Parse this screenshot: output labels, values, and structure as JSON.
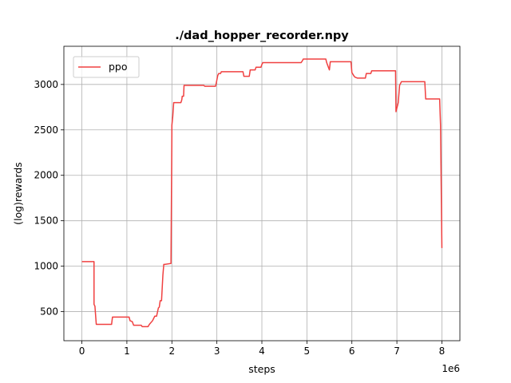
{
  "chart_data": {
    "type": "line",
    "title": "./dad_hopper_recorder.npy",
    "xlabel": "steps",
    "ylabel": "(log)rewards",
    "x_offset_label": "1e6",
    "xlim": [
      -0.4,
      8.4
    ],
    "ylim": [
      180,
      3420
    ],
    "xticks": [
      0,
      1,
      2,
      3,
      4,
      5,
      6,
      7,
      8
    ],
    "yticks": [
      500,
      1000,
      1500,
      2000,
      2500,
      3000
    ],
    "grid": true,
    "legend_position": "upper-left",
    "series": [
      {
        "name": "ppo",
        "color": "#f04040",
        "x": [
          0.0,
          0.27,
          0.27,
          0.29,
          0.32,
          0.33,
          0.66,
          0.68,
          1.05,
          1.07,
          1.12,
          1.15,
          1.32,
          1.34,
          1.47,
          1.5,
          1.57,
          1.62,
          1.66,
          1.7,
          1.72,
          1.74,
          1.77,
          1.8,
          1.82,
          1.84,
          1.98,
          2.0,
          2.0,
          2.02,
          2.04,
          2.2,
          2.22,
          2.23,
          2.26,
          2.27,
          2.71,
          2.73,
          2.97,
          2.98,
          3.0,
          3.02,
          3.04,
          3.08,
          3.1,
          3.14,
          3.16,
          3.58,
          3.6,
          3.72,
          3.74,
          3.85,
          3.87,
          3.98,
          4.0,
          4.02,
          4.85,
          4.87,
          4.9,
          4.92,
          5.4,
          5.42,
          5.44,
          5.5,
          5.52,
          5.98,
          6.0,
          6.05,
          6.07,
          6.12,
          6.14,
          6.3,
          6.32,
          6.42,
          6.44,
          6.96,
          6.97,
          6.98,
          7.02,
          7.03,
          7.06,
          7.1,
          7.12,
          7.62,
          7.64,
          7.93,
          7.95,
          7.97,
          8.0
        ],
        "y": [
          1050,
          1050,
          580,
          560,
          360,
          360,
          360,
          440,
          440,
          400,
          390,
          350,
          350,
          335,
          335,
          360,
          400,
          450,
          450,
          540,
          550,
          620,
          620,
          900,
          1020,
          1020,
          1030,
          2450,
          2550,
          2650,
          2800,
          2800,
          2830,
          2870,
          2870,
          2990,
          2990,
          2980,
          2980,
          3000,
          3050,
          3100,
          3120,
          3120,
          3140,
          3140,
          3140,
          3140,
          3090,
          3090,
          3160,
          3160,
          3190,
          3190,
          3220,
          3240,
          3240,
          3240,
          3260,
          3280,
          3280,
          3280,
          3240,
          3160,
          3250,
          3250,
          3130,
          3090,
          3080,
          3070,
          3070,
          3070,
          3120,
          3120,
          3150,
          3150,
          3150,
          2700,
          2780,
          2800,
          2990,
          3030,
          3030,
          3030,
          2840,
          2840,
          2840,
          2550,
          1200
        ]
      }
    ]
  }
}
